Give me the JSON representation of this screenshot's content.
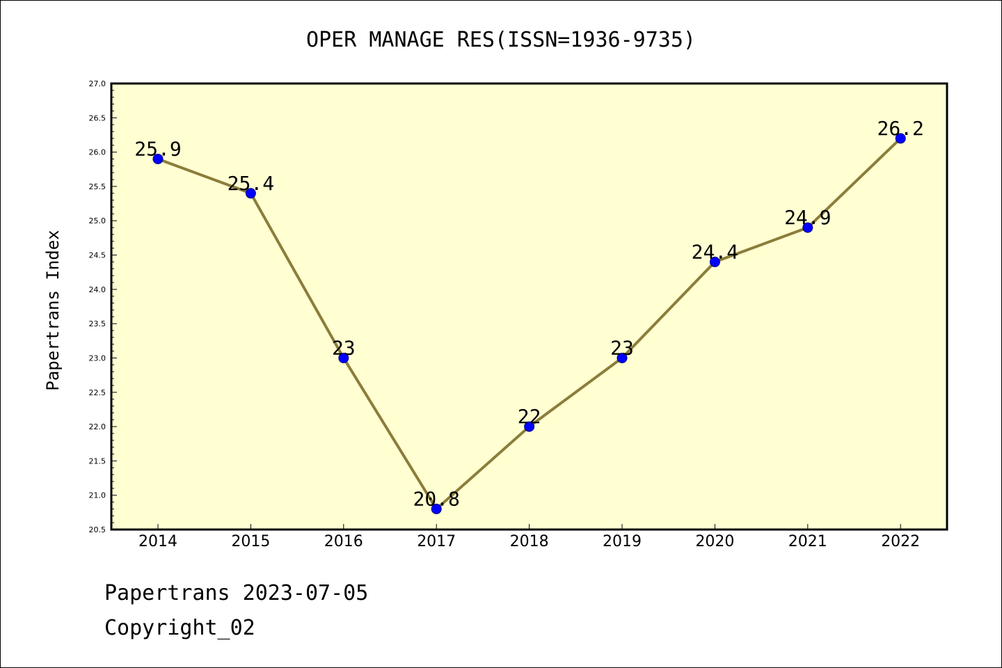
{
  "chart_data": {
    "type": "line",
    "title": "OPER MANAGE RES(ISSN=1936-9735)",
    "xlabel": "",
    "ylabel": "Papertrans Index",
    "categories": [
      "2014",
      "2015",
      "2016",
      "2017",
      "2018",
      "2019",
      "2020",
      "2021",
      "2022"
    ],
    "series": [
      {
        "values": [
          25.9,
          25.4,
          23,
          20.8,
          22,
          23,
          24.4,
          24.9,
          26.2
        ],
        "data_labels": [
          "25.9",
          "25.4",
          "23",
          "20.8",
          "22",
          "23",
          "24.4",
          "24.9",
          "26.2"
        ]
      }
    ],
    "ylim": [
      20.5,
      27.0
    ],
    "yticks": [
      "20.5",
      "21.0",
      "21.5",
      "22.0",
      "22.5",
      "23.0",
      "23.5",
      "24.0",
      "24.5",
      "25.0",
      "25.5",
      "26.0",
      "26.5",
      "27.0"
    ],
    "grid": false,
    "legend": "none",
    "colors": {
      "plot_background": "#ffffd2",
      "line": "#8b7d3a",
      "marker_fill": "#0000ff",
      "marker_edge": "#000080",
      "axes": "#000000"
    }
  },
  "footer": {
    "date_line": "Papertrans 2023-07-05",
    "copyright_line": "Copyright_02"
  }
}
